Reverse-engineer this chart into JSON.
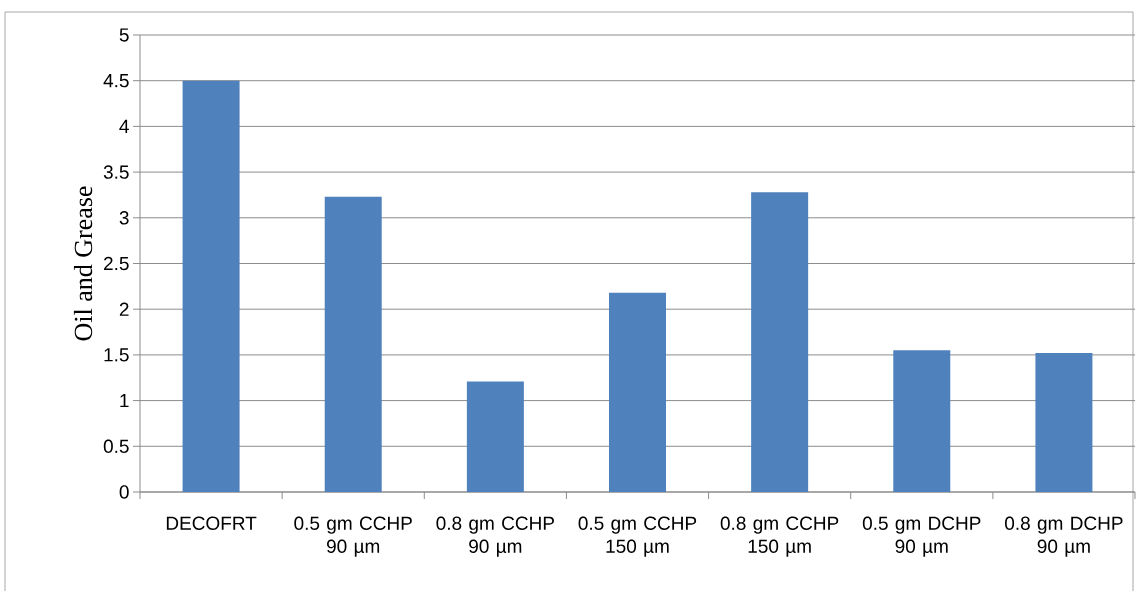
{
  "chart_data": {
    "type": "bar",
    "ylabel": "Oil and Grease",
    "categories": [
      "DECOFRT",
      "0.5 gm CCHP 90 µm",
      "0.8 gm CCHP 90 µm",
      "0.5 gm CCHP 150 µm",
      "0.8 gm CCHP 150 µm",
      "0.5 gm DCHP 90 µm",
      "0.8 gm DCHP 90 µm"
    ],
    "values": [
      4.5,
      3.23,
      1.21,
      2.18,
      3.28,
      1.55,
      1.52
    ],
    "color": "#4f81bd",
    "ylim": [
      0,
      5
    ],
    "yticks": [
      0,
      0.5,
      1,
      1.5,
      2,
      2.5,
      3,
      3.5,
      4,
      4.5,
      5
    ],
    "grid": "y"
  }
}
